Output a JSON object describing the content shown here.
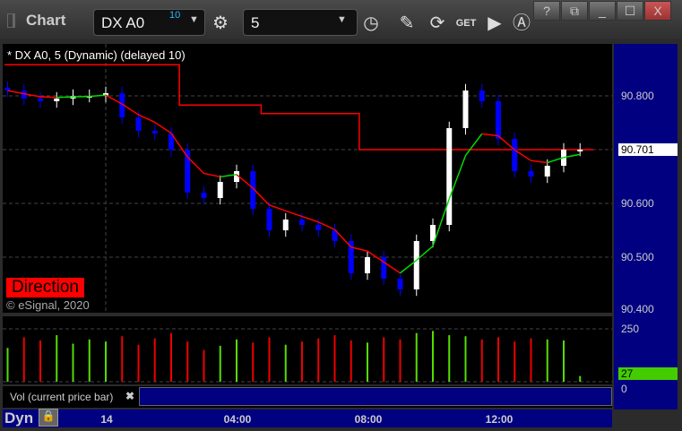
{
  "window": {
    "title": "Chart",
    "help": "?",
    "close": "X"
  },
  "toolbar": {
    "symbol": "DX A0",
    "symbol_badge": "10",
    "interval": "5",
    "icons": [
      "settings-gear-icon",
      "clock-icon",
      "pencil-icon",
      "studies-icon",
      "get-icon",
      "play-icon",
      "text-a-icon"
    ]
  },
  "chart": {
    "legend": "* DX A0, 5 (Dynamic) (delayed 10)",
    "direction_label": "Direction",
    "copyright": "© eSignal, 2020",
    "last_price": "90.701",
    "price_ticks": [
      "90.800",
      "90.700",
      "90.600",
      "90.500",
      "90.400"
    ],
    "colors": {
      "up": "#ffffff",
      "down": "#0000ff",
      "stop": "#ff0000",
      "ma_up": "#00dd00",
      "ma_down": "#ff0000",
      "background": "#000000",
      "axis": "#000080"
    }
  },
  "volume": {
    "label": "Vol (current price bar)",
    "ticks": [
      "250",
      "0"
    ],
    "last_value": "27"
  },
  "time_axis": {
    "mode": "Dyn",
    "labels": [
      "14",
      "04:00",
      "08:00",
      "12:00"
    ]
  },
  "chart_data": {
    "type": "candlestick",
    "x": [
      "21:00",
      "21:30",
      "22:00",
      "22:30",
      "23:00",
      "23:30",
      "00:00",
      "00:30",
      "01:00",
      "01:30",
      "02:00",
      "02:30",
      "03:00",
      "03:30",
      "04:00",
      "04:30",
      "05:00",
      "05:30",
      "06:00",
      "06:30",
      "07:00",
      "07:30",
      "08:00",
      "08:30",
      "09:00",
      "09:30",
      "10:00",
      "10:30",
      "11:00",
      "11:30",
      "12:00",
      "12:30",
      "13:00",
      "13:30",
      "14:00",
      "14:30"
    ],
    "close": [
      90.81,
      90.795,
      90.79,
      90.795,
      90.8,
      90.8,
      90.805,
      90.76,
      90.735,
      90.73,
      90.7,
      90.62,
      90.61,
      90.64,
      90.66,
      90.59,
      90.55,
      90.57,
      90.56,
      90.55,
      90.53,
      90.47,
      90.5,
      90.46,
      90.44,
      90.53,
      90.56,
      90.74,
      90.81,
      90.79,
      90.72,
      90.66,
      90.65,
      90.67,
      90.7,
      90.7
    ],
    "stop": [
      90.858,
      90.858,
      90.858,
      90.858,
      90.858,
      90.858,
      90.858,
      90.858,
      90.858,
      90.858,
      90.858,
      90.783,
      90.783,
      90.783,
      90.783,
      90.783,
      90.767,
      90.767,
      90.767,
      90.767,
      90.767,
      90.767,
      90.7,
      90.7,
      90.7,
      90.7,
      90.7,
      90.7,
      90.7,
      90.7,
      90.7,
      90.7,
      90.7,
      90.7,
      90.7,
      90.7
    ],
    "volume": [
      160,
      210,
      195,
      220,
      180,
      200,
      190,
      215,
      175,
      205,
      230,
      190,
      150,
      170,
      200,
      185,
      210,
      175,
      190,
      205,
      220,
      195,
      185,
      210,
      200,
      230,
      240,
      220,
      215,
      200,
      210,
      190,
      205,
      200,
      195,
      27
    ],
    "ylim": [
      90.4,
      90.9
    ],
    "volume_ylim": [
      0,
      250
    ]
  }
}
